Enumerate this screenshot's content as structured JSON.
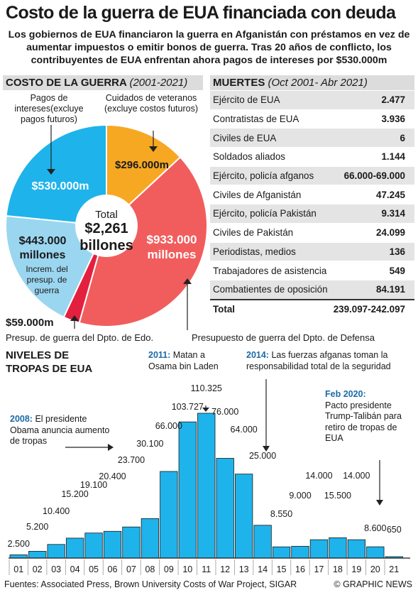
{
  "header": {
    "title": "Costo de la guerra de EUA financiada con deuda",
    "subtitle": "Los gobiernos de EUA financiaron la guerra en Afganistán con préstamos en vez de aumentar impuestos o emitir bonos de guerra. Tras 20 años de conflicto, los contribuyentes de EUA enfrentan ahora pagos de intereses por $530.000m"
  },
  "cost": {
    "heading": "COSTO DE LA GUERRA",
    "period": "(2001-2021)",
    "total_label": "Total",
    "total_value": "$2,261",
    "total_unit": "billones",
    "slices": [
      {
        "label": "Pagos de intereses(excluye pagos futuros)",
        "value_label": "$530.000m",
        "value": 530000,
        "color": "#1fb3eb"
      },
      {
        "label": "Cuidados de veteranos (excluye costos futuros)",
        "value_label": "$296.000m",
        "value": 296000,
        "color": "#f7a823"
      },
      {
        "label": "Presupuesto de guerra del Dpto. de Defensa",
        "value_label": "$933.000 millones",
        "value": 933000,
        "color": "#f15d5d"
      },
      {
        "label": "Presup. de guerra del Dpto. de Edo.",
        "value_label": "$59.000m",
        "value": 59000,
        "color": "#e4203f"
      },
      {
        "label": "Increm. del presup. de guerra",
        "value_label": "$443.000 millones",
        "value": 443000,
        "color": "#9bd6f0"
      }
    ]
  },
  "deaths": {
    "heading": "MUERTES",
    "period": "(Oct 2001- Abr 2021)",
    "rows": [
      {
        "label": "Ejército de EUA",
        "value": "2.477"
      },
      {
        "label": "Contratistas de EUA",
        "value": "3.936"
      },
      {
        "label": "Civiles de EUA",
        "value": "6"
      },
      {
        "label": "Soldados aliados",
        "value": "1.144"
      },
      {
        "label": "Ejército, policía afganos",
        "value": "66.000-69.000"
      },
      {
        "label": "Civiles de Afganistán",
        "value": "47.245"
      },
      {
        "label": "Ejército, policía Pakistán",
        "value": "9.314"
      },
      {
        "label": "Civiles de Pakistán",
        "value": "24.099"
      },
      {
        "label": "Periodistas, medios",
        "value": "136"
      },
      {
        "label": "Trabajadores de asistencia",
        "value": "549"
      },
      {
        "label": "Combatientes de oposición",
        "value": "84.191"
      }
    ],
    "total_label": "Total",
    "total_value": "239.097-242.097"
  },
  "troops": {
    "heading": "NIVELES DE TROPAS DE EUA",
    "annotations": {
      "a2008_year": "2008:",
      "a2008_text": "El presidente Obama anuncia aumento de tropas",
      "a2011_year": "2011:",
      "a2011_text": "Matan a Osama bin Laden",
      "a2014_year": "2014:",
      "a2014_text": "Las fuerzas afganas toman la responsabilidad total de la seguridad",
      "a2020_year": "Feb 2020:",
      "a2020_text": "Pacto presidente Trump-Talibán para retiro de tropas de EUA"
    }
  },
  "chart_data": {
    "type": "bar",
    "title": "NIVELES DE TROPAS DE EUA",
    "categories": [
      "01",
      "02",
      "03",
      "04",
      "05",
      "06",
      "07",
      "08",
      "09",
      "10",
      "11",
      "12",
      "13",
      "14",
      "15",
      "16",
      "17",
      "18",
      "19",
      "20",
      "21"
    ],
    "values": [
      2500,
      5200,
      10400,
      15200,
      19100,
      20400,
      23700,
      30100,
      66000,
      103727,
      110325,
      76000,
      64000,
      25000,
      8550,
      9000,
      14000,
      15500,
      14000,
      8600,
      650
    ],
    "value_labels": [
      "2.500",
      "5.200",
      "10.400",
      "15.200",
      "19.100",
      "20.400",
      "23.700",
      "30.100",
      "66.000",
      "103.727",
      "110.325",
      "76.000",
      "64.000",
      "25.000",
      "8.550",
      "9.000",
      "14.000",
      "15.500",
      "14.000",
      "8.600",
      "650"
    ],
    "ylim": [
      0,
      110325
    ],
    "grid": false,
    "color": "#1fb3eb"
  },
  "footer": {
    "sources": "Fuentes: Associated Press, Brown University Costs of War Project, SIGAR",
    "credit": "© GRAPHIC NEWS"
  }
}
